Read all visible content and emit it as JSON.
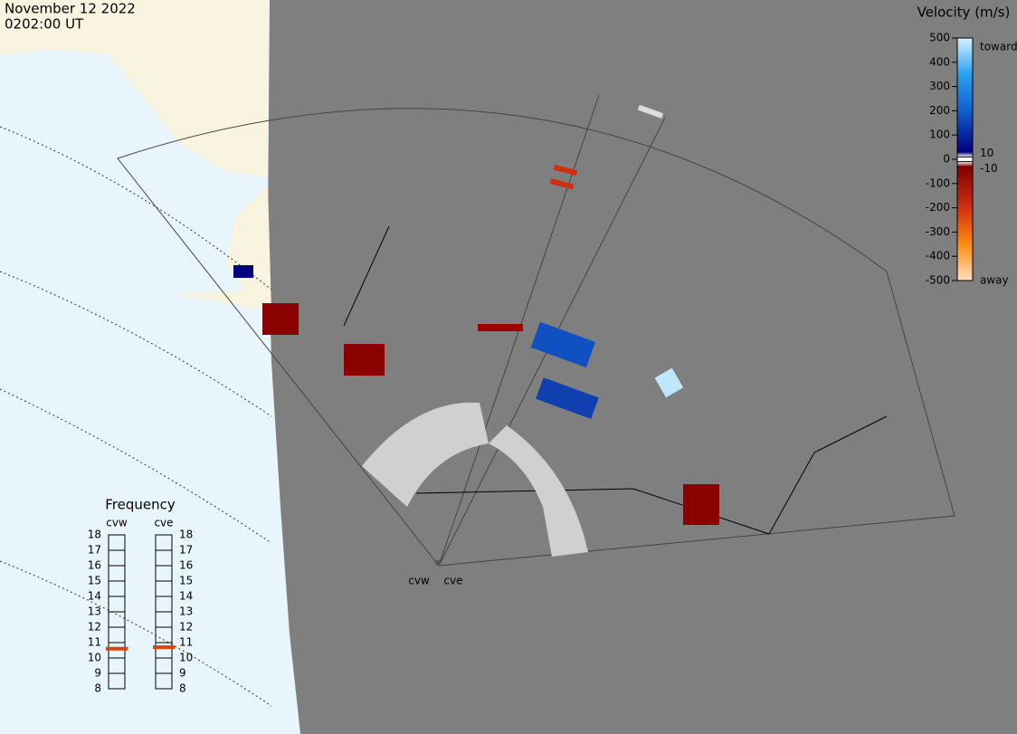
{
  "header": {
    "date": "November 12 2022",
    "time": "0202:00 UT"
  },
  "colorbar": {
    "title": "Velocity (m/s)",
    "range": [
      -500,
      500
    ],
    "ticks": [
      500,
      400,
      300,
      200,
      100,
      0,
      -100,
      -200,
      -300,
      -400,
      -500
    ],
    "inner_ticks": [
      10,
      -10
    ],
    "toward": "toward",
    "away": "away"
  },
  "frequency": {
    "title": "Frequency",
    "range": [
      8,
      18
    ],
    "ticks": [
      8,
      9,
      10,
      11,
      12,
      13,
      14,
      15,
      16,
      17,
      18
    ],
    "radars": [
      {
        "name": "cvw",
        "value": 10.6
      },
      {
        "name": "cve",
        "value": 10.7
      }
    ]
  },
  "map": {
    "sites": [
      "cvw",
      "cve"
    ]
  }
}
